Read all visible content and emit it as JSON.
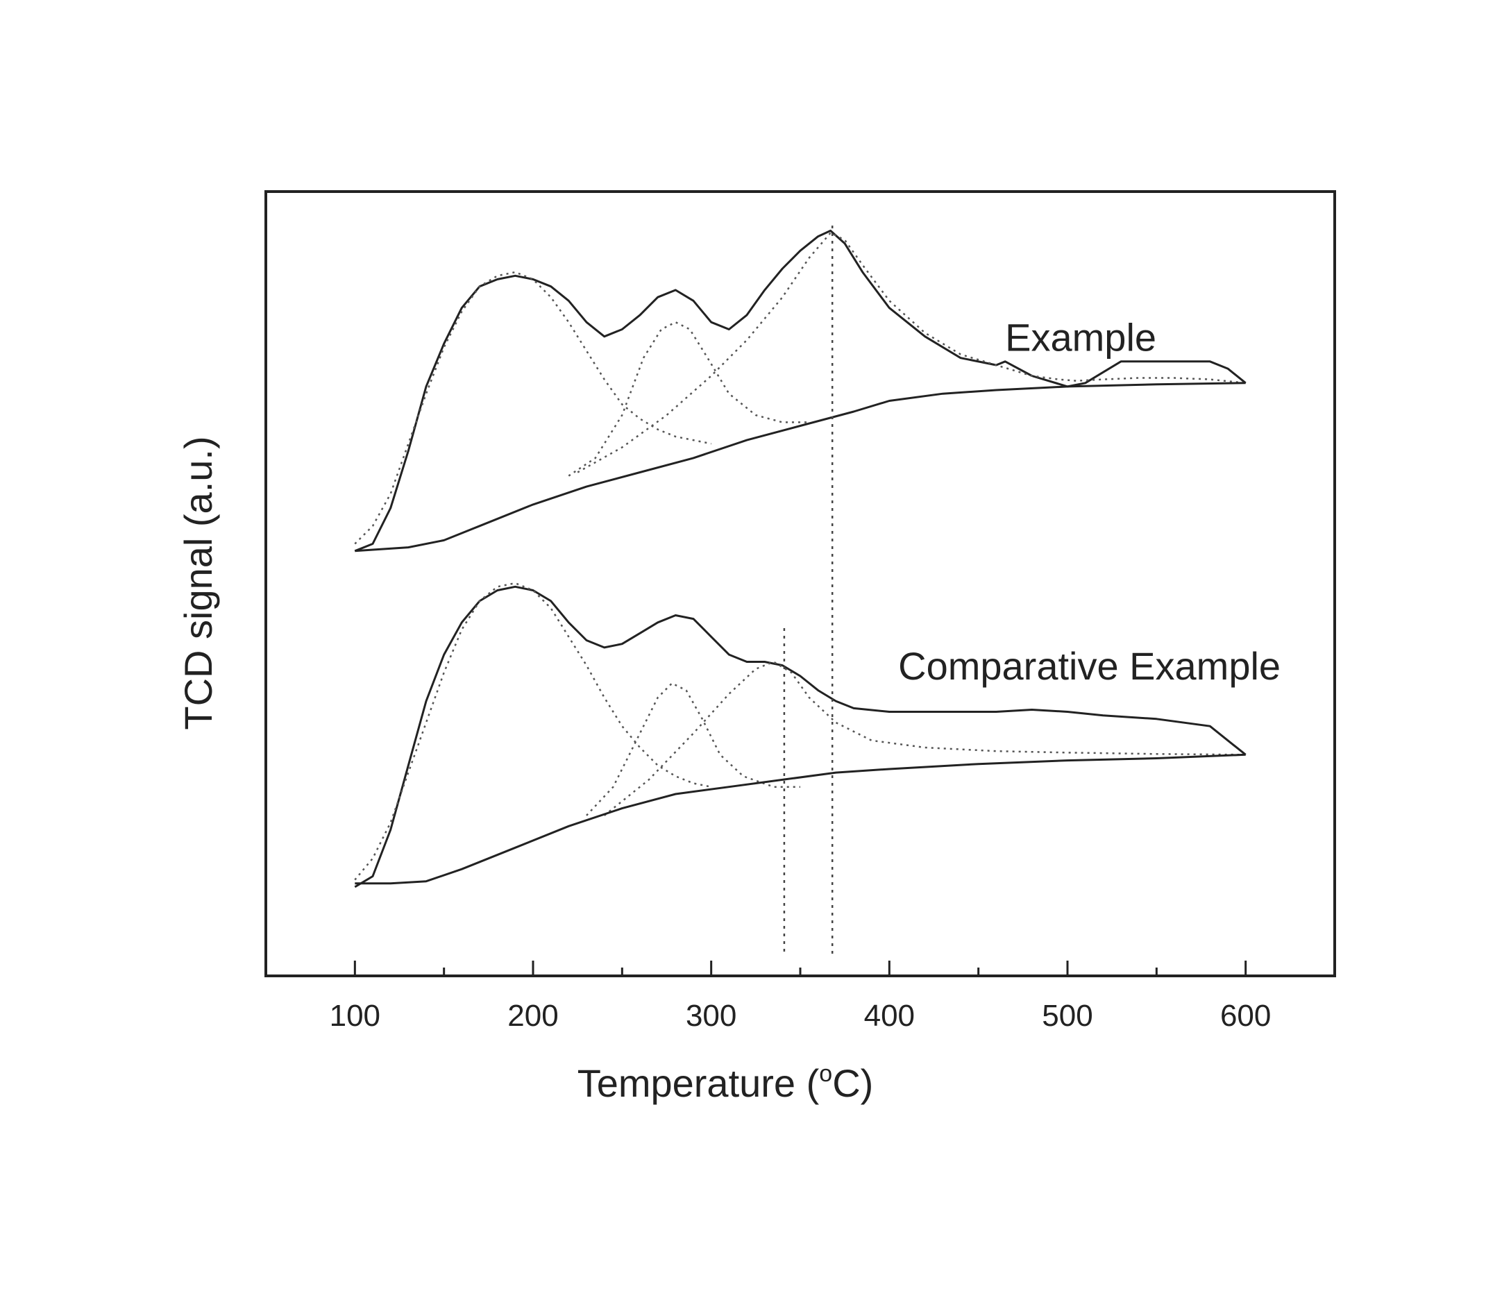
{
  "chart_data": {
    "type": "line",
    "title": "",
    "xlabel": "Temperature (°C)",
    "xlabel_parts": {
      "before": "Temperature (",
      "sup": "o",
      "after": "C)"
    },
    "ylabel": "TCD signal (a.u.)",
    "xlim": [
      50,
      650
    ],
    "ylim": [
      0,
      10
    ],
    "x_ticks": [
      100,
      200,
      300,
      400,
      500,
      600
    ],
    "x_tick_labels": [
      "100",
      "200",
      "300",
      "400",
      "500",
      "600"
    ],
    "y_ticks_shown": false,
    "grid": false,
    "legend": "none",
    "reference_lines_x": [
      341,
      368
    ],
    "curve_labels": [
      {
        "text": "Example",
        "x": 465,
        "y": 8.2
      },
      {
        "text": "Comparative Example",
        "x": 405,
        "y": 3.6
      }
    ],
    "series": [
      {
        "group": "example",
        "style": "solid",
        "x": [
          100,
          110,
          120,
          130,
          140,
          150,
          160,
          170,
          180,
          190,
          200,
          210,
          220,
          230,
          240,
          250,
          260,
          270,
          280,
          290,
          300,
          310,
          320,
          330,
          340,
          350,
          360,
          367,
          375,
          385,
          400,
          420,
          440,
          460,
          465,
          480,
          500,
          510,
          520,
          530,
          550,
          580,
          590,
          600
        ],
        "y": [
          5.4,
          5.5,
          6.0,
          6.8,
          7.7,
          8.3,
          8.8,
          9.1,
          9.2,
          9.25,
          9.2,
          9.1,
          8.9,
          8.6,
          8.4,
          8.5,
          8.7,
          8.95,
          9.05,
          8.9,
          8.6,
          8.5,
          8.7,
          9.05,
          9.35,
          9.6,
          9.8,
          9.88,
          9.7,
          9.3,
          8.8,
          8.4,
          8.1,
          8.0,
          8.05,
          7.85,
          7.7,
          7.75,
          7.9,
          8.05,
          8.05,
          8.05,
          7.95,
          7.75
        ]
      },
      {
        "group": "example",
        "style": "dotted",
        "x": [
          100,
          110,
          120,
          130,
          140,
          150,
          160,
          170,
          180,
          190,
          200,
          210,
          220,
          230,
          240,
          250,
          260,
          270,
          280,
          290,
          300
        ],
        "y": [
          5.5,
          5.75,
          6.2,
          6.9,
          7.6,
          8.25,
          8.75,
          9.1,
          9.25,
          9.3,
          9.2,
          8.95,
          8.6,
          8.2,
          7.8,
          7.45,
          7.25,
          7.1,
          7.0,
          6.95,
          6.9
        ]
      },
      {
        "group": "example",
        "style": "dotted",
        "x": [
          220,
          235,
          250,
          262,
          272,
          280,
          288,
          298,
          310,
          325,
          340,
          355
        ],
        "y": [
          6.45,
          6.7,
          7.3,
          8.1,
          8.5,
          8.6,
          8.5,
          8.1,
          7.6,
          7.3,
          7.2,
          7.2
        ]
      },
      {
        "group": "example",
        "style": "dotted",
        "x": [
          225,
          250,
          275,
          300,
          320,
          340,
          355,
          367,
          375,
          385,
          400,
          420,
          440,
          460,
          480,
          495,
          505,
          520,
          540,
          560,
          580,
          600
        ],
        "y": [
          6.5,
          6.85,
          7.3,
          7.85,
          8.35,
          8.95,
          9.5,
          9.85,
          9.75,
          9.4,
          8.9,
          8.45,
          8.15,
          8.0,
          7.85,
          7.8,
          7.78,
          7.8,
          7.82,
          7.82,
          7.8,
          7.75
        ]
      },
      {
        "group": "example",
        "style": "solid",
        "x": [
          100,
          130,
          150,
          170,
          200,
          230,
          260,
          290,
          320,
          350,
          380,
          400,
          430,
          460,
          500,
          550,
          600
        ],
        "y": [
          5.4,
          5.45,
          5.55,
          5.75,
          6.05,
          6.3,
          6.5,
          6.7,
          6.95,
          7.15,
          7.35,
          7.5,
          7.6,
          7.65,
          7.7,
          7.73,
          7.75
        ]
      },
      {
        "group": "comparative",
        "style": "solid",
        "x": [
          100,
          110,
          120,
          130,
          140,
          150,
          160,
          170,
          180,
          190,
          200,
          210,
          220,
          230,
          240,
          250,
          260,
          270,
          280,
          290,
          300,
          310,
          320,
          330,
          340,
          350,
          360,
          370,
          380,
          400,
          430,
          460,
          480,
          500,
          520,
          550,
          580,
          590,
          600
        ],
        "y": [
          0.7,
          0.85,
          1.5,
          2.4,
          3.3,
          3.95,
          4.4,
          4.7,
          4.85,
          4.9,
          4.85,
          4.7,
          4.4,
          4.15,
          4.05,
          4.1,
          4.25,
          4.4,
          4.5,
          4.45,
          4.2,
          3.95,
          3.85,
          3.85,
          3.8,
          3.65,
          3.45,
          3.3,
          3.2,
          3.15,
          3.15,
          3.15,
          3.18,
          3.15,
          3.1,
          3.05,
          2.95,
          2.75,
          2.55
        ]
      },
      {
        "group": "comparative",
        "style": "dotted",
        "x": [
          100,
          110,
          120,
          130,
          140,
          150,
          160,
          170,
          180,
          190,
          200,
          210,
          220,
          230,
          240,
          250,
          260,
          270,
          280,
          290,
          300
        ],
        "y": [
          0.8,
          1.1,
          1.6,
          2.3,
          3.0,
          3.7,
          4.3,
          4.7,
          4.9,
          4.95,
          4.85,
          4.6,
          4.2,
          3.8,
          3.35,
          2.95,
          2.65,
          2.4,
          2.25,
          2.15,
          2.1
        ]
      },
      {
        "group": "comparative",
        "style": "dotted",
        "x": [
          230,
          245,
          260,
          270,
          278,
          286,
          295,
          305,
          318,
          335,
          350
        ],
        "y": [
          1.7,
          2.1,
          2.85,
          3.35,
          3.55,
          3.45,
          3.05,
          2.55,
          2.25,
          2.1,
          2.1
        ]
      },
      {
        "group": "comparative",
        "style": "dotted",
        "x": [
          240,
          265,
          290,
          310,
          325,
          335,
          345,
          355,
          370,
          390,
          420,
          460,
          500,
          550,
          600
        ],
        "y": [
          1.7,
          2.2,
          2.85,
          3.4,
          3.75,
          3.85,
          3.7,
          3.35,
          3.0,
          2.75,
          2.65,
          2.6,
          2.58,
          2.56,
          2.55
        ]
      },
      {
        "group": "comparative",
        "style": "solid",
        "x": [
          100,
          120,
          140,
          160,
          190,
          220,
          250,
          280,
          310,
          340,
          370,
          400,
          450,
          500,
          550,
          600
        ],
        "y": [
          0.75,
          0.75,
          0.78,
          0.95,
          1.25,
          1.55,
          1.8,
          2.0,
          2.1,
          2.2,
          2.3,
          2.35,
          2.42,
          2.47,
          2.5,
          2.55
        ]
      }
    ]
  }
}
